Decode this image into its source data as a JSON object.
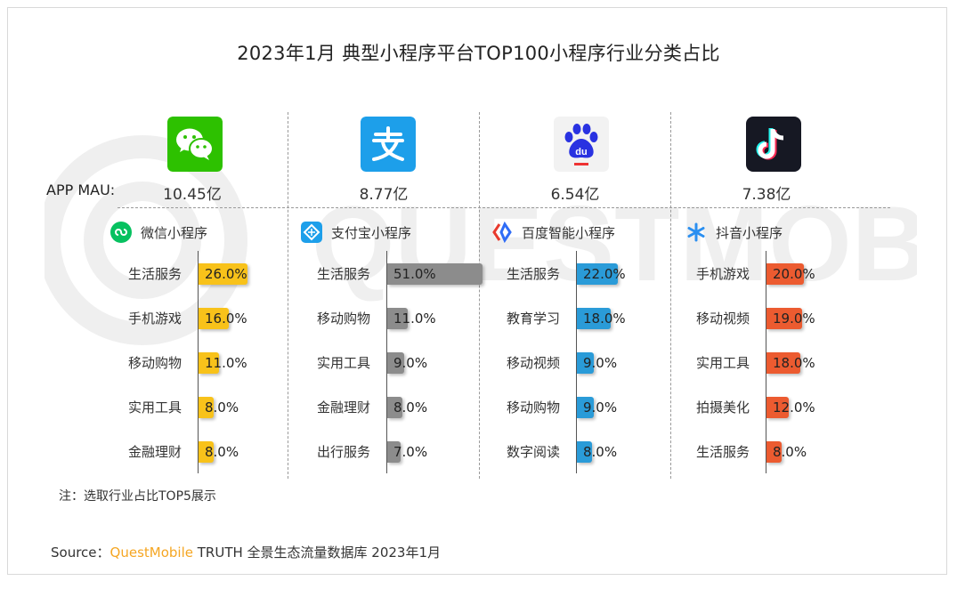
{
  "title": "2023年1月 典型小程序平台TOP100小程序行业分类占比",
  "mau_label": "APP MAU:",
  "note": "注：选取行业占比TOP5展示",
  "source": {
    "prefix": "Source：",
    "brand": "QuestMobile",
    "rest": " TRUTH 全景生态流量数据库 2023年1月"
  },
  "platforms": [
    {
      "app_icon": "wechat-icon",
      "mau": "10.45亿",
      "mini_icon": "wechat-miniprogram-icon",
      "mini_name": "微信小程序",
      "bar_color": "#f8c21a"
    },
    {
      "app_icon": "alipay-icon",
      "mau": "8.77亿",
      "mini_icon": "alipay-miniprogram-icon",
      "mini_name": "支付宝小程序",
      "bar_color": "#8c8c8c"
    },
    {
      "app_icon": "baidu-icon",
      "mau": "6.54亿",
      "mini_icon": "baidu-smart-miniprogram-icon",
      "mini_name": "百度智能小程序",
      "bar_color": "#2a9bd8"
    },
    {
      "app_icon": "douyin-icon",
      "mau": "7.38亿",
      "mini_icon": "douyin-miniprogram-icon",
      "mini_name": "抖音小程序",
      "bar_color": "#ec5b30"
    }
  ],
  "chart_data": [
    {
      "type": "bar",
      "title": "微信小程序",
      "categories": [
        "生活服务",
        "手机游戏",
        "移动购物",
        "实用工具",
        "金融理财"
      ],
      "values": [
        26.0,
        16.0,
        11.0,
        8.0,
        8.0
      ],
      "labels": [
        "26.0%",
        "16.0%",
        "11.0%",
        "8.0%",
        "8.0%"
      ]
    },
    {
      "type": "bar",
      "title": "支付宝小程序",
      "categories": [
        "生活服务",
        "移动购物",
        "实用工具",
        "金融理财",
        "出行服务"
      ],
      "values": [
        51.0,
        11.0,
        9.0,
        8.0,
        7.0
      ],
      "labels": [
        "51.0%",
        "11.0%",
        "9.0%",
        "8.0%",
        "7.0%"
      ]
    },
    {
      "type": "bar",
      "title": "百度智能小程序",
      "categories": [
        "生活服务",
        "教育学习",
        "移动视频",
        "移动购物",
        "数字阅读"
      ],
      "values": [
        22.0,
        18.0,
        9.0,
        9.0,
        8.0
      ],
      "labels": [
        "22.0%",
        "18.0%",
        "9.0%",
        "9.0%",
        "8.0%"
      ]
    },
    {
      "type": "bar",
      "title": "抖音小程序",
      "categories": [
        "手机游戏",
        "移动视频",
        "实用工具",
        "拍摄美化",
        "生活服务"
      ],
      "values": [
        20.0,
        19.0,
        18.0,
        12.0,
        8.0
      ],
      "labels": [
        "20.0%",
        "19.0%",
        "18.0%",
        "12.0%",
        "8.0%"
      ]
    }
  ]
}
